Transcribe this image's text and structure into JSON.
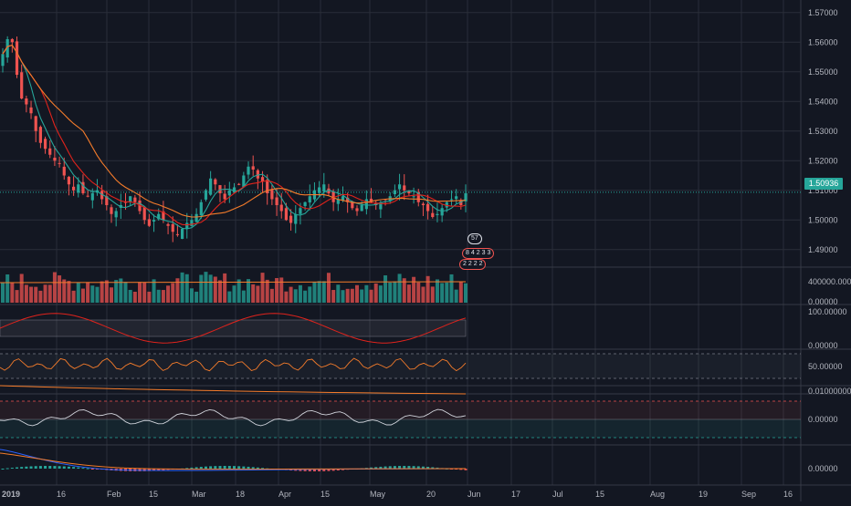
{
  "symbol_price": "1.50936",
  "price_axis": [
    "1.57000",
    "1.56000",
    "1.55000",
    "1.54000",
    "1.53000",
    "1.52000",
    "1.51000",
    "1.50000",
    "1.49000"
  ],
  "volume_axis": [
    "400000.00000",
    "0.00000"
  ],
  "stoch_axis": [
    "100.00000",
    "0.00000"
  ],
  "rsi_axis": [
    "50.00000"
  ],
  "adx_axis": [
    "0.01000000"
  ],
  "osc_axis": [
    "0.00000"
  ],
  "macd_axis": [
    "0.00000"
  ],
  "time_axis": [
    "2019",
    "16",
    "Feb",
    "15",
    "Mar",
    "18",
    "Apr",
    "15",
    "May",
    "20",
    "Jun",
    "17",
    "Jul",
    "15",
    "Aug",
    "19",
    "Sep",
    "16"
  ],
  "events": {
    "top": "57",
    "mid": [
      "8",
      "4",
      "2",
      "3",
      "3"
    ],
    "bottom": [
      "2",
      "2",
      "2",
      "2"
    ]
  },
  "colors": {
    "background": "#131722",
    "grid": "#2a2e39",
    "up": "#26a69a",
    "down": "#ef5350",
    "ma_fast": "#26a69a",
    "ma_mid": "#e0231c",
    "ma_slow": "#f57c2b",
    "text": "#b2b5be"
  },
  "chart_data": {
    "type": "candlestick",
    "title": "",
    "xlabel": "",
    "ylabel": "",
    "ylim": [
      1.485,
      1.573
    ],
    "x_range": [
      "2019-01-01",
      "2019-09-22"
    ],
    "series": [
      {
        "type": "candles",
        "points": [
          1.556,
          1.561,
          1.56,
          1.549,
          1.541,
          1.539,
          1.536,
          1.53,
          1.526,
          1.524,
          1.522,
          1.52,
          1.519,
          1.515,
          1.512,
          1.51,
          1.512,
          1.509,
          1.508,
          1.509,
          1.51,
          1.507,
          1.505,
          1.502,
          1.503,
          1.505,
          1.506,
          1.508,
          1.506,
          1.503,
          1.5,
          1.498,
          1.5,
          1.502,
          1.5,
          1.498,
          1.496,
          1.495,
          1.497,
          1.499,
          1.5,
          1.502,
          1.506,
          1.51,
          1.514,
          1.512,
          1.509,
          1.507,
          1.51,
          1.511,
          1.512,
          1.515,
          1.518,
          1.517,
          1.514,
          1.513,
          1.509,
          1.507,
          1.505,
          1.503,
          1.5,
          1.499,
          1.502,
          1.504,
          1.506,
          1.508,
          1.51,
          1.511,
          1.512,
          1.509,
          1.506,
          1.507,
          1.508,
          1.506,
          1.504,
          1.503,
          1.505,
          1.507,
          1.506,
          1.505,
          1.506,
          1.507,
          1.508,
          1.51,
          1.512,
          1.51,
          1.509,
          1.508,
          1.506,
          1.505,
          1.503,
          1.501,
          1.502,
          1.504,
          1.506,
          1.507,
          1.508,
          1.505,
          1.509
        ]
      },
      {
        "type": "ma",
        "name": "",
        "color": "#26a69a"
      },
      {
        "type": "ma",
        "name": "",
        "color": "#e0231c"
      },
      {
        "type": "ma",
        "name": "",
        "color": "#f57c2b"
      }
    ],
    "grid": true
  }
}
